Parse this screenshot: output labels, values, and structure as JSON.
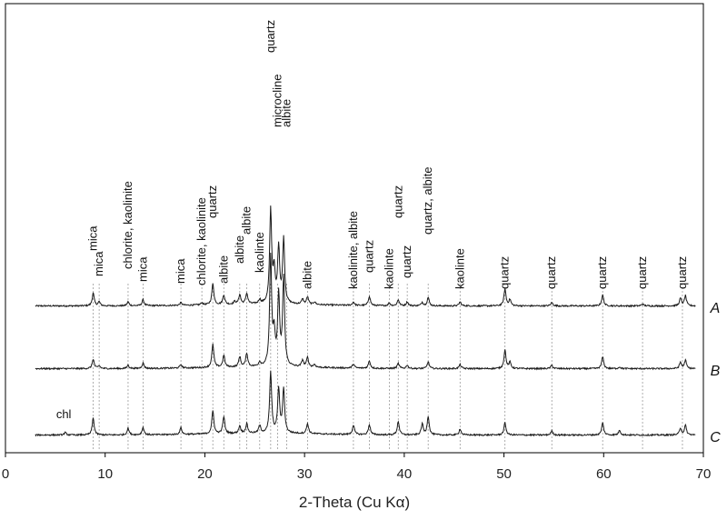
{
  "chart_data": {
    "type": "line",
    "xlabel": "2-Theta (Cu Kα)",
    "xlim": [
      0,
      70
    ],
    "xticks": [
      0,
      10,
      20,
      30,
      40,
      50,
      60,
      70
    ],
    "ylabel": "",
    "grid": false,
    "baseline": 0.04,
    "noise": 0.022,
    "peak_width": 0.12,
    "series": [
      {
        "name": "A",
        "offset": 0,
        "peaks": [
          [
            8.8,
            0.38
          ],
          [
            9.4,
            0.12
          ],
          [
            12.3,
            0.12
          ],
          [
            13.8,
            0.18
          ],
          [
            17.6,
            0.08
          ],
          [
            19.7,
            0.06
          ],
          [
            20.8,
            0.62
          ],
          [
            21.9,
            0.28
          ],
          [
            23.0,
            0.08
          ],
          [
            23.5,
            0.28
          ],
          [
            24.2,
            0.32
          ],
          [
            25.5,
            0.12
          ],
          [
            26.6,
            2.75
          ],
          [
            26.95,
            0.9
          ],
          [
            27.4,
            1.65
          ],
          [
            27.9,
            1.9
          ],
          [
            29.8,
            0.15
          ],
          [
            30.3,
            0.22
          ],
          [
            31.0,
            0.08
          ],
          [
            34.9,
            0.1
          ],
          [
            36.5,
            0.28
          ],
          [
            38.5,
            0.08
          ],
          [
            39.4,
            0.18
          ],
          [
            40.3,
            0.12
          ],
          [
            41.8,
            0.1
          ],
          [
            42.4,
            0.25
          ],
          [
            45.6,
            0.12
          ],
          [
            50.1,
            0.5
          ],
          [
            50.6,
            0.18
          ],
          [
            54.8,
            0.1
          ],
          [
            59.9,
            0.32
          ],
          [
            63.9,
            0.06
          ],
          [
            67.7,
            0.22
          ],
          [
            68.2,
            0.3
          ]
        ]
      },
      {
        "name": "B",
        "offset": -0.76,
        "peaks": [
          [
            8.8,
            0.28
          ],
          [
            9.4,
            0.08
          ],
          [
            12.3,
            0.1
          ],
          [
            13.8,
            0.16
          ],
          [
            17.6,
            0.1
          ],
          [
            20.8,
            0.68
          ],
          [
            21.9,
            0.35
          ],
          [
            23.5,
            0.3
          ],
          [
            24.2,
            0.4
          ],
          [
            25.5,
            0.12
          ],
          [
            26.6,
            3.2
          ],
          [
            26.95,
            0.9
          ],
          [
            27.4,
            2.05
          ],
          [
            27.9,
            2.6
          ],
          [
            29.8,
            0.2
          ],
          [
            30.3,
            0.28
          ],
          [
            31.0,
            0.08
          ],
          [
            34.9,
            0.12
          ],
          [
            36.5,
            0.22
          ],
          [
            39.4,
            0.15
          ],
          [
            40.3,
            0.1
          ],
          [
            42.4,
            0.2
          ],
          [
            45.6,
            0.12
          ],
          [
            50.1,
            0.55
          ],
          [
            50.6,
            0.18
          ],
          [
            54.8,
            0.1
          ],
          [
            59.9,
            0.35
          ],
          [
            61.6,
            0.05
          ],
          [
            67.7,
            0.18
          ],
          [
            68.2,
            0.25
          ]
        ]
      },
      {
        "name": "C",
        "offset": -1.62,
        "peaks": [
          [
            6.0,
            0.07
          ],
          [
            8.8,
            0.5
          ],
          [
            12.3,
            0.2
          ],
          [
            13.8,
            0.22
          ],
          [
            17.6,
            0.2
          ],
          [
            20.8,
            0.68
          ],
          [
            21.9,
            0.5
          ],
          [
            23.5,
            0.22
          ],
          [
            24.2,
            0.28
          ],
          [
            25.5,
            0.22
          ],
          [
            26.6,
            1.8
          ],
          [
            27.4,
            1.3
          ],
          [
            27.9,
            1.3
          ],
          [
            30.3,
            0.3
          ],
          [
            34.9,
            0.28
          ],
          [
            36.5,
            0.3
          ],
          [
            39.4,
            0.4
          ],
          [
            41.8,
            0.32
          ],
          [
            42.4,
            0.55
          ],
          [
            45.6,
            0.18
          ],
          [
            50.1,
            0.36
          ],
          [
            54.8,
            0.12
          ],
          [
            59.9,
            0.36
          ],
          [
            61.6,
            0.14
          ],
          [
            67.7,
            0.2
          ],
          [
            68.2,
            0.28
          ]
        ]
      }
    ],
    "annotations": [
      {
        "x": 8.8,
        "text": "mica"
      },
      {
        "x": 9.4,
        "text": "mica"
      },
      {
        "x": 12.3,
        "text": "chlorite, kaolinite"
      },
      {
        "x": 13.8,
        "text": "mica"
      },
      {
        "x": 17.6,
        "text": "mica"
      },
      {
        "x": 19.7,
        "text": "chlorite, kaolinite"
      },
      {
        "x": 20.8,
        "text": "quartz"
      },
      {
        "x": 21.9,
        "text": "albite"
      },
      {
        "x": 23.5,
        "text": "albite"
      },
      {
        "x": 24.2,
        "text": "albite"
      },
      {
        "x": 25.5,
        "text": "kaolinte"
      },
      {
        "x": 26.6,
        "text": "quartz"
      },
      {
        "x": 27.3,
        "text": "microcline"
      },
      {
        "x": 28.2,
        "text": "albite"
      },
      {
        "x": 30.3,
        "text": "albite"
      },
      {
        "x": 34.9,
        "text": "kaolinite, albite"
      },
      {
        "x": 36.5,
        "text": "quartz"
      },
      {
        "x": 38.5,
        "text": "kaolinte"
      },
      {
        "x": 39.4,
        "text": "quartz"
      },
      {
        "x": 40.3,
        "text": "quartz"
      },
      {
        "x": 42.4,
        "text": "quartz, albite"
      },
      {
        "x": 45.6,
        "text": "kaolinte"
      },
      {
        "x": 50.1,
        "text": "quartz"
      },
      {
        "x": 54.8,
        "text": "quartz"
      },
      {
        "x": 59.9,
        "text": "quartz"
      },
      {
        "x": 63.9,
        "text": "quartz"
      },
      {
        "x": 67.9,
        "text": "quartz"
      }
    ],
    "extra_labels": [
      {
        "x": 6.0,
        "series": "C",
        "text": "chl"
      }
    ]
  }
}
